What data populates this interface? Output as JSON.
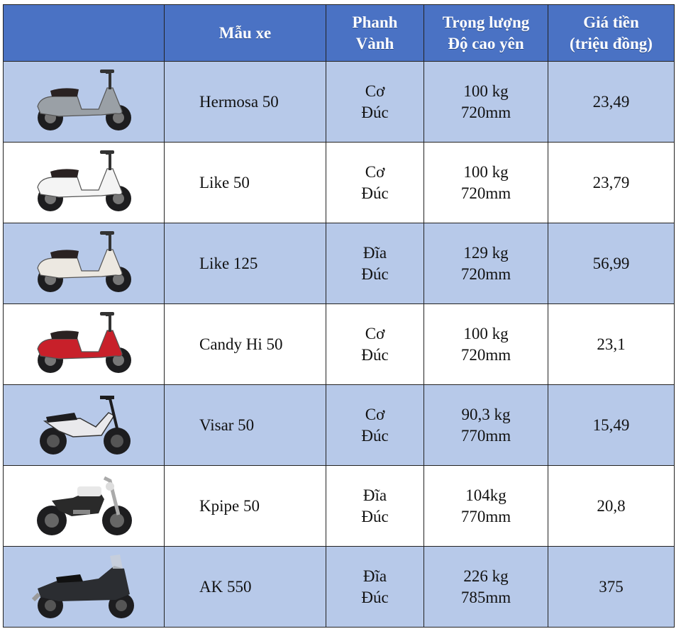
{
  "headers": {
    "image": "",
    "model": "Mẫu xe",
    "brake_line1": "Phanh",
    "brake_line2": "Vành",
    "weight_line1": "Trọng lượng",
    "weight_line2": "Độ cao yên",
    "price_line1": "Giá tiền",
    "price_line2": "(triệu đồng)"
  },
  "rows": [
    {
      "model": "Hermosa 50",
      "brake": "Cơ",
      "rim": "Đúc",
      "weight": "100 kg",
      "seat": "720mm",
      "price": "23,49",
      "bike_icon": "scooter-silver-icon",
      "color": "#9aa0a6"
    },
    {
      "model": "Like 50",
      "brake": "Cơ",
      "rim": "Đúc",
      "weight": "100 kg",
      "seat": "720mm",
      "price": "23,79",
      "bike_icon": "scooter-white-icon",
      "color": "#f4f4f4"
    },
    {
      "model": "Like 125",
      "brake": "Đĩa",
      "rim": "Đúc",
      "weight": "129 kg",
      "seat": "720mm",
      "price": "56,99",
      "bike_icon": "scooter-cream-icon",
      "color": "#ece8e1"
    },
    {
      "model": "Candy Hi 50",
      "brake": "Cơ",
      "rim": "Đúc",
      "weight": "100 kg",
      "seat": "720mm",
      "price": "23,1",
      "bike_icon": "scooter-red-icon",
      "color": "#c8202a"
    },
    {
      "model": "Visar 50",
      "brake": "Cơ",
      "rim": "Đúc",
      "weight": "90,3 kg",
      "seat": "770mm",
      "price": "15,49",
      "bike_icon": "underbone-icon",
      "color": "#e9e9ec"
    },
    {
      "model": "Kpipe 50",
      "brake": "Đĩa",
      "rim": "Đúc",
      "weight": "104kg",
      "seat": "770mm",
      "price": "20,8",
      "bike_icon": "naked-bike-icon",
      "color": "#2a2a2a"
    },
    {
      "model": "AK 550",
      "brake": "Đĩa",
      "rim": "Đúc",
      "weight": "226 kg",
      "seat": "785mm",
      "price": "375",
      "bike_icon": "maxi-scooter-icon",
      "color": "#2b2d31"
    }
  ]
}
